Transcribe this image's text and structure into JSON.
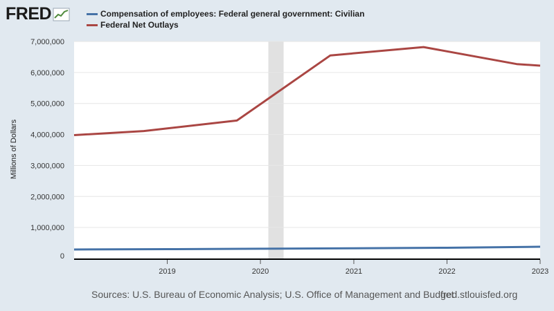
{
  "header": {
    "logo_text": "FRED",
    "logo_icon": "trend-line-icon"
  },
  "legend": [
    {
      "label": "Compensation of employees: Federal general government: Civilian",
      "color": "#4572a7"
    },
    {
      "label": "Federal Net Outlays",
      "color": "#aa4643"
    }
  ],
  "footer": {
    "sources": "Sources: U.S. Bureau of Economic Analysis; U.S. Office of Management and Budget",
    "url": "fred.stlouisfed.org"
  },
  "chart_data": {
    "type": "line",
    "ylabel": "Millions of Dollars",
    "ylim": [
      0,
      7000000
    ],
    "yticks": [
      0,
      1000000,
      2000000,
      3000000,
      4000000,
      5000000,
      6000000,
      7000000
    ],
    "ytick_labels": [
      "0",
      "1,000,000",
      "2,000,000",
      "3,000,000",
      "4,000,000",
      "5,000,000",
      "6,000,000",
      "7,000,000"
    ],
    "xlim": [
      "2018-01-01",
      "2023-01-01"
    ],
    "xtick_labels": [
      "2019",
      "2020",
      "2021",
      "2022",
      "2023"
    ],
    "grid": true,
    "recession": {
      "start": "2020-02-01",
      "end": "2020-04-01",
      "color": "#e1e1e1"
    },
    "series": [
      {
        "name": "Compensation of employees: Federal general government: Civilian",
        "color": "#4572a7",
        "x": [
          "2018-01-01",
          "2019-01-01",
          "2020-01-01",
          "2021-01-01",
          "2022-01-01",
          "2023-01-01"
        ],
        "values": [
          290000,
          300000,
          315000,
          330000,
          345000,
          380000
        ]
      },
      {
        "name": "Federal Net Outlays",
        "color": "#aa4643",
        "x": [
          "2018-01-01",
          "2018-10-01",
          "2019-10-01",
          "2020-10-01",
          "2021-10-01",
          "2022-10-01",
          "2023-01-01"
        ],
        "values": [
          3980000,
          4110000,
          4450000,
          6550000,
          6820000,
          6270000,
          6220000
        ]
      }
    ]
  }
}
